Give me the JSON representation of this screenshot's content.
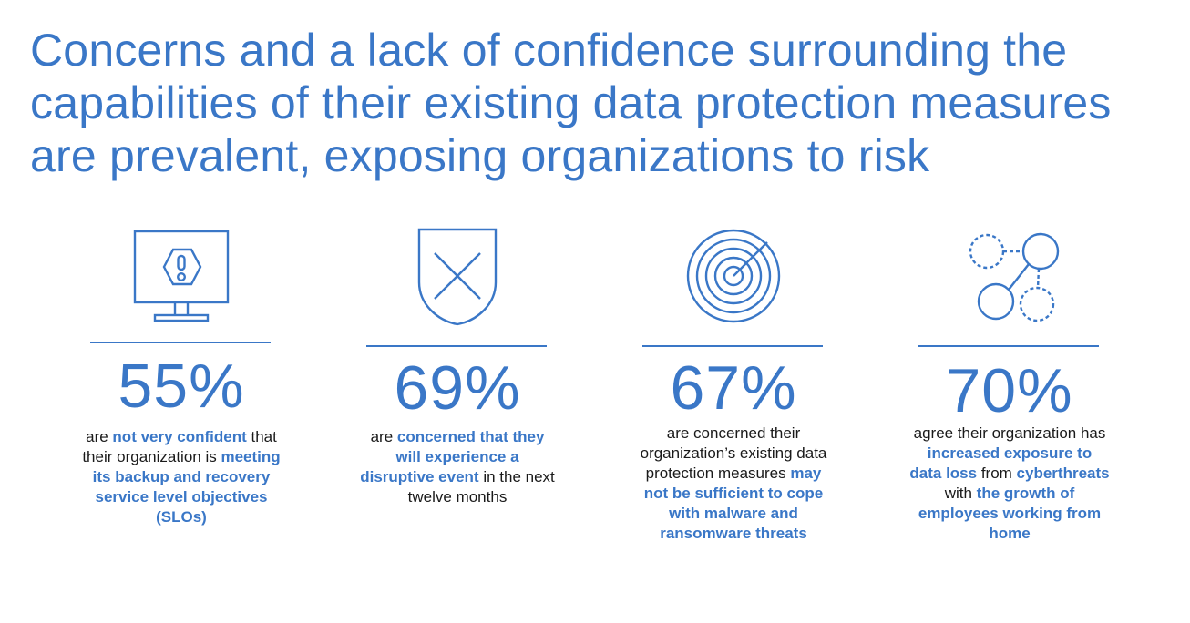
{
  "headline": "Concerns and a lack of confidence surrounding the capabilities of their existing data protection measures are prevalent, exposing organizations to risk",
  "colors": {
    "accent": "#3a77c7",
    "body_text": "#1a1a1a",
    "background": "#ffffff"
  },
  "stats": [
    {
      "icon": "monitor-warning-icon",
      "value": "55%",
      "description": [
        {
          "text": "are ",
          "highlight": false
        },
        {
          "text": "not very confident",
          "highlight": true
        },
        {
          "text": " that their organization is ",
          "highlight": false
        },
        {
          "text": "meeting its backup and recovery service level objectives (SLOs)",
          "highlight": true
        }
      ]
    },
    {
      "icon": "shield-x-icon",
      "value": "69%",
      "description": [
        {
          "text": "are ",
          "highlight": false
        },
        {
          "text": "concerned that they will experience a disruptive event",
          "highlight": true
        },
        {
          "text": " in the next twelve months",
          "highlight": false
        }
      ]
    },
    {
      "icon": "target-icon",
      "value": "67%",
      "description": [
        {
          "text": "are concerned their organization’s existing data protection measures ",
          "highlight": false
        },
        {
          "text": "may not be sufficient to cope with malware and ransomware threats",
          "highlight": true
        }
      ]
    },
    {
      "icon": "network-nodes-icon",
      "value": "70%",
      "description": [
        {
          "text": "agree their organization has ",
          "highlight": false
        },
        {
          "text": "increased exposure to data loss",
          "highlight": true
        },
        {
          "text": " from ",
          "highlight": false
        },
        {
          "text": "cyberthreats",
          "highlight": true
        },
        {
          "text": " with ",
          "highlight": false
        },
        {
          "text": "the growth of employees working from home",
          "highlight": true
        }
      ]
    }
  ]
}
